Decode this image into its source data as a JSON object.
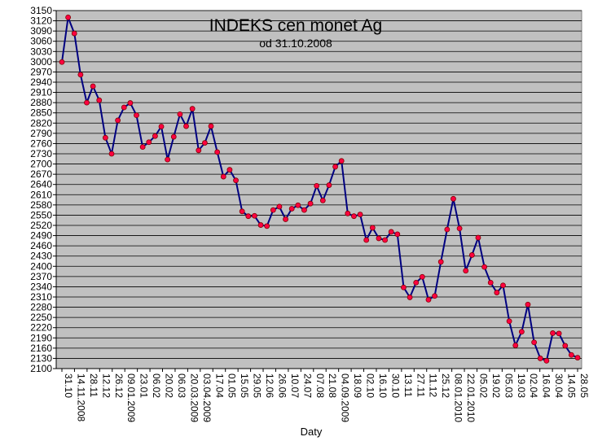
{
  "chart_data": {
    "type": "line",
    "title": "INDEKS cen monet Ag",
    "subtitle": "od 31.10.2008",
    "xlabel": "Daty",
    "ylabel": "",
    "ylim": [
      2100,
      3150
    ],
    "ytick_step": 30,
    "grid": true,
    "legend": "none",
    "colors": {
      "plot_bg": "#c0c0c0",
      "line": "#000080",
      "marker": "#ff0040",
      "marker_edge": "#800000",
      "grid": "#000000"
    },
    "x_tick_labels": [
      "31.10",
      "14.11.2008",
      "28.11",
      "12.12",
      "26.12",
      "09.01.2009",
      "23.01",
      "06.02",
      "20.02",
      "06.03",
      "20.03.2009",
      "03.04.2009",
      "17.04",
      "01.05",
      "15.05",
      "29.05",
      "12.06",
      "26.06",
      "10.07",
      "24.07",
      "07.08",
      "21.08",
      "04.09.2009",
      "18.09",
      "02.10",
      "16.10",
      "30.10",
      "13.11",
      "27.11",
      "11.12",
      "25.12",
      "08.01.2010",
      "22.01.2010",
      "05.02",
      "19.02",
      "05.03",
      "19.03",
      "02.04",
      "16.04",
      "30.04",
      "14.05",
      "28.05"
    ],
    "series": [
      {
        "values": [
          2999,
          3130,
          3083,
          2962,
          2880,
          2928,
          2887,
          2777,
          2730,
          2828,
          2866,
          2879,
          2843,
          2750,
          2764,
          2782,
          2810,
          2713,
          2780,
          2846,
          2811,
          2862,
          2740,
          2762,
          2811,
          2735,
          2663,
          2683,
          2652,
          2561,
          2547,
          2548,
          2521,
          2518,
          2565,
          2575,
          2538,
          2569,
          2579,
          2565,
          2584,
          2636,
          2593,
          2638,
          2692,
          2709,
          2555,
          2547,
          2552,
          2477,
          2513,
          2482,
          2477,
          2501,
          2494,
          2338,
          2309,
          2352,
          2369,
          2302,
          2313,
          2413,
          2508,
          2598,
          2511,
          2387,
          2433,
          2484,
          2398,
          2352,
          2323,
          2344,
          2239,
          2168,
          2208,
          2288,
          2177,
          2130,
          2123,
          2204,
          2203,
          2167,
          2140,
          2132
        ]
      }
    ]
  }
}
